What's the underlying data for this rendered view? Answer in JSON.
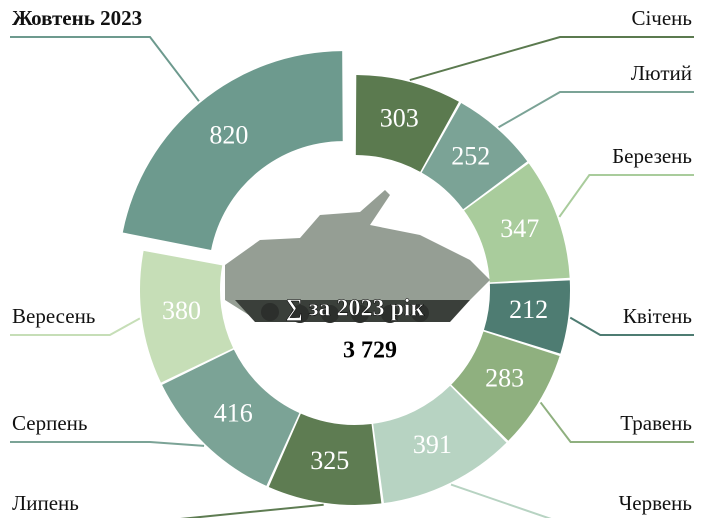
{
  "chart_data": {
    "type": "donut",
    "categories": [
      "Січень",
      "Лютий",
      "Березень",
      "Квітень",
      "Травень",
      "Червень",
      "Липень",
      "Серпень",
      "Вересень",
      "Жовтень 2023"
    ],
    "values": [
      303,
      252,
      347,
      212,
      283,
      391,
      325,
      416,
      380,
      820
    ],
    "colors": [
      "#5b7a4f",
      "#7ba396",
      "#a9cc9c",
      "#4e7c72",
      "#8fb07f",
      "#b7d3c2",
      "#5e7c52",
      "#7ba396",
      "#c6deb7",
      "#6d9a8e"
    ],
    "center_title": "∑ за 2023 рік",
    "center_total": "3 729"
  }
}
